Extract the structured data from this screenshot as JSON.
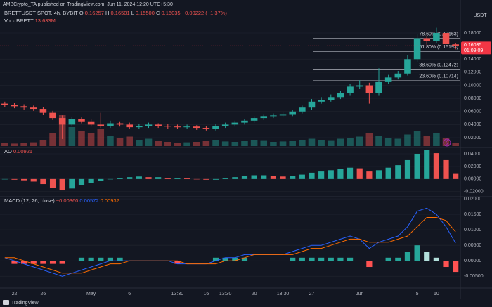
{
  "chart_data": {
    "type": "candlestick",
    "publisher": "AMBCrypto_TA published on TradingView.com, Jun 11, 2024 12:20 UTC+5:30",
    "header": {
      "symbol": "BRETTUSDT SPOT, 4h, BYBIT",
      "ohlc": [
        [
          "O",
          "0.16257"
        ],
        [
          "H",
          "0.16501"
        ],
        [
          "L",
          "0.15500"
        ],
        [
          "C",
          "0.16035"
        ]
      ],
      "change": "−0.00222 (−1.37%)"
    },
    "currency": "USDT",
    "up_color": "#26a69a",
    "down_color": "#ef5350",
    "categories": [
      null,
      "22",
      null,
      null,
      "26",
      null,
      null,
      null,
      null,
      "May",
      null,
      null,
      null,
      "6",
      null,
      null,
      null,
      null,
      "13:30",
      null,
      null,
      "16",
      null,
      "13:30",
      null,
      null,
      "20",
      null,
      null,
      "13:30",
      null,
      null,
      "27",
      null,
      null,
      null,
      null,
      "Jun",
      null,
      null,
      null,
      null,
      null,
      "5",
      null,
      "10",
      null,
      null
    ],
    "open": [
      0.072,
      0.07,
      0.068,
      0.066,
      0.064,
      0.058,
      0.05,
      0.04,
      0.048,
      0.045,
      0.04,
      0.038,
      0.042,
      0.04,
      0.036,
      0.038,
      0.04,
      0.038,
      0.037,
      0.036,
      0.037,
      0.035,
      0.034,
      0.038,
      0.04,
      0.043,
      0.046,
      0.05,
      0.053,
      0.054,
      0.056,
      0.06,
      0.066,
      0.075,
      0.078,
      0.082,
      0.088,
      0.098,
      0.1,
      0.088,
      0.105,
      0.112,
      0.118,
      0.14,
      0.172,
      0.168,
      0.18,
      0.16257
    ],
    "high": [
      0.075,
      0.073,
      0.071,
      0.069,
      0.067,
      0.061,
      0.054,
      0.052,
      0.051,
      0.048,
      0.058,
      0.046,
      0.045,
      0.043,
      0.041,
      0.043,
      0.042,
      0.041,
      0.04,
      0.04,
      0.039,
      0.038,
      0.041,
      0.043,
      0.046,
      0.049,
      0.053,
      0.056,
      0.057,
      0.059,
      0.063,
      0.069,
      0.079,
      0.082,
      0.086,
      0.092,
      0.102,
      0.108,
      0.104,
      0.126,
      0.116,
      0.122,
      0.146,
      0.178,
      0.176,
      0.188,
      0.184,
      0.16501
    ],
    "low": [
      0.067,
      0.065,
      0.063,
      0.061,
      0.055,
      0.047,
      0.018,
      0.037,
      0.042,
      0.037,
      0.035,
      0.035,
      0.037,
      0.033,
      0.033,
      0.035,
      0.035,
      0.034,
      0.033,
      0.033,
      0.032,
      0.031,
      0.031,
      0.035,
      0.037,
      0.04,
      0.043,
      0.047,
      0.05,
      0.051,
      0.053,
      0.057,
      0.063,
      0.072,
      0.075,
      0.079,
      0.085,
      0.095,
      0.072,
      0.085,
      0.102,
      0.109,
      0.115,
      0.136,
      0.162,
      0.165,
      0.16,
      0.155
    ],
    "close": [
      0.07,
      0.068,
      0.066,
      0.064,
      0.058,
      0.05,
      0.04,
      0.048,
      0.045,
      0.04,
      0.038,
      0.042,
      0.04,
      0.036,
      0.038,
      0.04,
      0.038,
      0.037,
      0.036,
      0.037,
      0.035,
      0.034,
      0.038,
      0.04,
      0.043,
      0.046,
      0.05,
      0.053,
      0.054,
      0.056,
      0.06,
      0.066,
      0.075,
      0.078,
      0.082,
      0.088,
      0.098,
      0.1,
      0.088,
      0.105,
      0.112,
      0.118,
      0.14,
      0.172,
      0.168,
      0.18,
      0.163,
      0.16035
    ],
    "ylim": [
      0.005,
      0.2305
    ],
    "yticks": [
      {
        "value": 0.18,
        "label": "0.18000"
      },
      {
        "value": 0.14,
        "label": "0.14000"
      },
      {
        "value": 0.12,
        "label": "0.12000"
      },
      {
        "value": 0.1,
        "label": "0.10000"
      },
      {
        "value": 0.08,
        "label": "0.08000"
      },
      {
        "value": 0.06,
        "label": "0.06000"
      },
      {
        "value": 0.04,
        "label": "0.04000"
      },
      {
        "value": 0.02,
        "label": "0.02000"
      }
    ],
    "last_price": {
      "timer": "01:09:09",
      "color": "#f23645"
    },
    "fib_levels": [
      {
        "label": "78.60% (0.17163)",
        "value": 0.17163
      },
      {
        "label": "61.80% (0.15193)",
        "value": 0.15193
      },
      {
        "label": "38.60% (0.12472)",
        "value": 0.12472
      },
      {
        "label": "23.60% (0.10714)",
        "value": 0.10714
      }
    ],
    "volume": {
      "label": "Vol · BRETT",
      "value_label": "13.633M",
      "ylim": [
        0,
        200000000
      ],
      "values": [
        15000000,
        12000000,
        14000000,
        18000000,
        30000000,
        60000000,
        150000000,
        90000000,
        70000000,
        60000000,
        80000000,
        50000000,
        40000000,
        45000000,
        30000000,
        35000000,
        25000000,
        20000000,
        15000000,
        18000000,
        20000000,
        25000000,
        30000000,
        22000000,
        20000000,
        25000000,
        30000000,
        28000000,
        20000000,
        22000000,
        25000000,
        30000000,
        35000000,
        30000000,
        28000000,
        35000000,
        40000000,
        45000000,
        60000000,
        50000000,
        40000000,
        35000000,
        55000000,
        70000000,
        50000000,
        60000000,
        40000000,
        13633000
      ]
    },
    "ao": {
      "name": "AO",
      "value_label": "0.00921",
      "ylim": [
        -0.028,
        0.05
      ],
      "yticks": [
        {
          "value": 0.04,
          "label": "0.04000"
        },
        {
          "value": 0.02,
          "label": "0.02000"
        },
        {
          "value": 0,
          "label": "0.00000"
        },
        {
          "value": -0.02,
          "label": "-0.02000"
        }
      ],
      "values": [
        0.0,
        -0.001,
        -0.002,
        -0.004,
        -0.008,
        -0.014,
        -0.018,
        -0.015,
        -0.01,
        -0.006,
        -0.003,
        0.0,
        0.002,
        0.003,
        0.004,
        0.003,
        0.003,
        0.002,
        0.002,
        0.001,
        0.0,
        -0.001,
        -0.001,
        0.001,
        0.003,
        0.005,
        0.006,
        0.006,
        0.005,
        0.004,
        0.005,
        0.007,
        0.01,
        0.012,
        0.014,
        0.016,
        0.018,
        0.017,
        0.012,
        0.014,
        0.018,
        0.022,
        0.03,
        0.04,
        0.046,
        0.041,
        0.03,
        0.00921
      ]
    },
    "macd": {
      "name": "MACD (12, 26, close)",
      "value_labels": [
        "−0.00360",
        "0.00572",
        "0.00932"
      ],
      "ylim": [
        -0.0088,
        0.0207
      ],
      "yticks": [
        {
          "value": 0.02,
          "label": "0.02000"
        },
        {
          "value": 0.015,
          "label": "0.01500"
        },
        {
          "value": 0.01,
          "label": "0.01000"
        },
        {
          "value": 0.005,
          "label": "0.00500"
        },
        {
          "value": 0,
          "label": "0.00000"
        },
        {
          "value": -0.005,
          "label": "-0.00500"
        }
      ],
      "histogram": {
        "colors": [
          "#26a69a",
          "#b2dfdb",
          "#ffcdd2",
          "#ff5252"
        ],
        "values": [
          0,
          -0.001,
          -0.001,
          -0.001,
          -0.001,
          -0.001,
          -0.001,
          0,
          0.001,
          0.001,
          0.001,
          0.001,
          0.001,
          0,
          0,
          0,
          0,
          0,
          -0.001,
          0,
          0,
          0,
          0.001,
          0.001,
          0.001,
          0.001,
          0,
          0,
          0,
          0,
          0.001,
          0.001,
          0.001,
          0.001,
          0.001,
          0.001,
          0.001,
          0,
          -0.002,
          0,
          0.001,
          0.001,
          0.003,
          0.005,
          0.003,
          0.001,
          -0.002,
          -0.0036
        ]
      },
      "line": {
        "color": "#2962ff",
        "values": [
          0.001,
          0.0,
          -0.001,
          -0.002,
          -0.003,
          -0.004,
          -0.005,
          -0.004,
          -0.003,
          -0.002,
          -0.001,
          0.0,
          0.0,
          0.0,
          0.0,
          0.0,
          0.0,
          0.0,
          -0.001,
          -0.001,
          -0.001,
          -0.001,
          0.0,
          0.001,
          0.001,
          0.002,
          0.002,
          0.002,
          0.002,
          0.002,
          0.003,
          0.004,
          0.005,
          0.005,
          0.006,
          0.007,
          0.008,
          0.007,
          0.004,
          0.006,
          0.007,
          0.008,
          0.011,
          0.016,
          0.017,
          0.015,
          0.011,
          0.00572
        ]
      },
      "signal": {
        "color": "#ff6d00",
        "values": [
          0.001,
          0.001,
          0.0,
          -0.001,
          -0.002,
          -0.003,
          -0.004,
          -0.004,
          -0.004,
          -0.003,
          -0.002,
          -0.001,
          -0.001,
          0.0,
          0.0,
          0.0,
          0.0,
          0.0,
          0.0,
          -0.001,
          -0.001,
          -0.001,
          -0.001,
          0.0,
          0.0,
          0.001,
          0.002,
          0.002,
          0.002,
          0.002,
          0.002,
          0.003,
          0.004,
          0.004,
          0.005,
          0.006,
          0.007,
          0.007,
          0.006,
          0.006,
          0.006,
          0.007,
          0.008,
          0.011,
          0.014,
          0.014,
          0.013,
          0.00932
        ]
      }
    },
    "footer": "TradingView"
  }
}
